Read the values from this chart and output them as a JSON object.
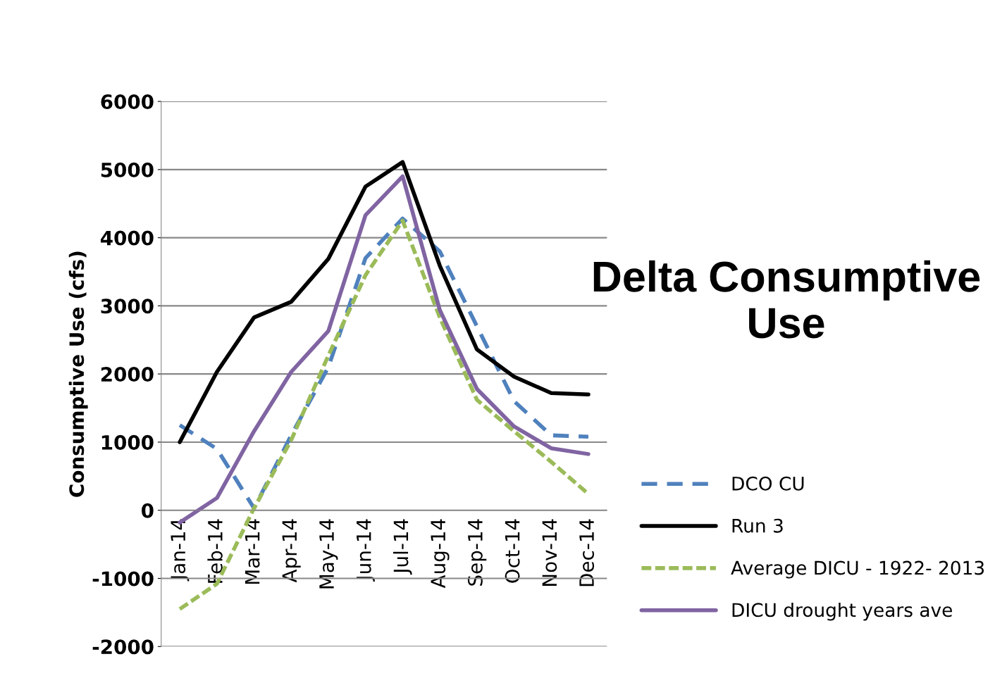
{
  "chart_data": {
    "type": "line",
    "title": "Delta Consumptive Use",
    "ylabel": "Consumptive Use (cfs)",
    "categories": [
      "Jan-14",
      "Feb-14",
      "Mar-14",
      "Apr-14",
      "May-14",
      "Jun-14",
      "Jul-14",
      "Aug-14",
      "Sep-14",
      "Oct-14",
      "Nov-14",
      "Dec-14"
    ],
    "series": [
      {
        "name": "DCO CU",
        "color": "#4f81bd",
        "line_style": "dashed",
        "values": [
          1250,
          900,
          30,
          1100,
          2100,
          3700,
          4280,
          3800,
          2700,
          1600,
          1100,
          1080
        ]
      },
      {
        "name": "Run 3",
        "color": "#000000",
        "line_style": "solid",
        "values": [
          1000,
          2030,
          2830,
          3060,
          3690,
          4750,
          5110,
          3590,
          2360,
          1960,
          1720,
          1700
        ]
      },
      {
        "name": "Average DICU - 1922- 2013",
        "color": "#9bbb59",
        "line_style": "dotted",
        "values": [
          -1450,
          -1080,
          30,
          1030,
          2270,
          3450,
          4250,
          2830,
          1620,
          1160,
          710,
          240
        ]
      },
      {
        "name": "DICU drought years ave",
        "color": "#8064a2",
        "line_style": "solid",
        "values": [
          -180,
          180,
          1160,
          2030,
          2630,
          4330,
          4900,
          2940,
          1780,
          1230,
          910,
          825
        ]
      }
    ],
    "ylim": [
      -2000,
      6000
    ],
    "yticks": [
      -2000,
      -1000,
      0,
      1000,
      2000,
      3000,
      4000,
      5000,
      6000
    ],
    "grid": "y",
    "legend": "right",
    "marker": "none"
  }
}
